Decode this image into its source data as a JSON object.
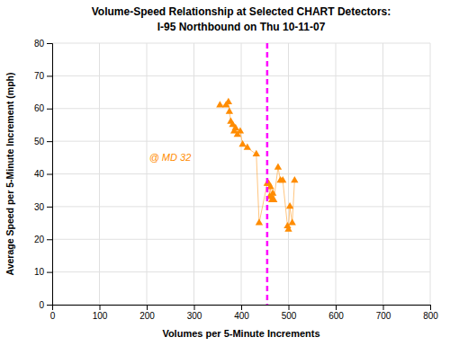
{
  "chart_data": {
    "type": "scatter",
    "title": "Volume-Speed Relationship at Selected CHART Detectors:",
    "subtitle": "I-95 Northbound on Thu 10-11-07",
    "x_label": "Volumes per 5-Minute Increments",
    "y_label": "Average Speed per 5-Minute Increment (mph)",
    "x": [
      355,
      368,
      373,
      375,
      378,
      382,
      385,
      388,
      392,
      398,
      403,
      413,
      432,
      438,
      455,
      458,
      460,
      462,
      464,
      465,
      467,
      469,
      478,
      483,
      488,
      498,
      500,
      503,
      508,
      513
    ],
    "values": [
      61,
      61,
      62,
      59,
      56,
      55,
      53,
      54,
      52,
      53,
      49,
      48,
      46,
      25,
      37,
      37,
      33,
      36,
      33,
      32,
      34,
      32,
      42,
      38,
      38,
      24,
      23,
      30,
      25,
      38
    ],
    "color": "#FF8C00",
    "marker": "triangle-up",
    "line_style": "solid",
    "xlim": [
      0,
      800
    ],
    "ylim": [
      0,
      80
    ],
    "xticks": [
      0,
      100,
      200,
      300,
      400,
      500,
      600,
      700,
      800
    ],
    "yticks": [
      0,
      10,
      20,
      30,
      40,
      50,
      60,
      70,
      80
    ],
    "grid": true,
    "reference_lines": [
      {
        "x": 455,
        "color": "#FF00FF",
        "line_style": "dashed"
      }
    ],
    "annotations": [
      {
        "text": "@ MD 32",
        "x": 205,
        "y": 44
      }
    ]
  }
}
